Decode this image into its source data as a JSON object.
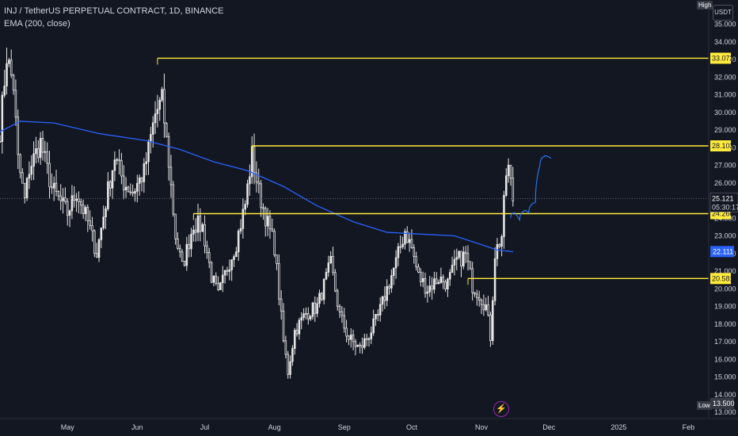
{
  "header": {
    "symbol_line": "INJ / TetherUS PERPETUAL CONTRACT, 1D, BINANCE",
    "indicator_line": "EMA (200, close)"
  },
  "price_axis": {
    "currency_label": "USDT",
    "high_label": "High",
    "low_label": "Low"
  },
  "chart_data": {
    "type": "candlestick",
    "ylim": [
      13.0,
      35.7
    ],
    "y_ticks": [
      "13.000",
      "14.000",
      "15.000",
      "16.000",
      "17.000",
      "18.000",
      "19.000",
      "20.000",
      "21.000",
      "22.000",
      "23.000",
      "24.000",
      "25.000",
      "26.000",
      "27.000",
      "28.000",
      "29.000",
      "30.000",
      "31.000",
      "32.000",
      "33.000",
      "34.000",
      "35.000"
    ],
    "x_labels": [
      {
        "label": "May",
        "date": "2024-05-01"
      },
      {
        "label": "Jun",
        "date": "2024-06-01"
      },
      {
        "label": "Jul",
        "date": "2024-07-01"
      },
      {
        "label": "Aug",
        "date": "2024-08-01"
      },
      {
        "label": "Sep",
        "date": "2024-09-01"
      },
      {
        "label": "Oct",
        "date": "2024-10-01"
      },
      {
        "label": "Nov",
        "date": "2024-11-01"
      },
      {
        "label": "Dec",
        "date": "2024-12-01"
      },
      {
        "label": "2025",
        "date": "2025-01-01"
      },
      {
        "label": "Feb",
        "date": "2025-02-01"
      }
    ],
    "x_range": [
      "2024-04-01",
      "2025-02-10"
    ],
    "price_path": [
      [
        "2024-04-01",
        29.0
      ],
      [
        "2024-04-04",
        33.2
      ],
      [
        "2024-04-07",
        31.5
      ],
      [
        "2024-04-09",
        27.3
      ],
      [
        "2024-04-12",
        25.0
      ],
      [
        "2024-04-14",
        26.8
      ],
      [
        "2024-04-19",
        28.3
      ],
      [
        "2024-04-24",
        25.7
      ],
      [
        "2024-05-01",
        24.3
      ],
      [
        "2024-05-05",
        25.5
      ],
      [
        "2024-05-10",
        23.8
      ],
      [
        "2024-05-14",
        22.0
      ],
      [
        "2024-05-19",
        25.6
      ],
      [
        "2024-05-22",
        27.5
      ],
      [
        "2024-05-26",
        26.0
      ],
      [
        "2024-05-30",
        25.5
      ],
      [
        "2024-06-04",
        26.6
      ],
      [
        "2024-06-09",
        29.9
      ],
      [
        "2024-06-12",
        30.7
      ],
      [
        "2024-06-15",
        27.2
      ],
      [
        "2024-06-18",
        23.0
      ],
      [
        "2024-06-21",
        21.2
      ],
      [
        "2024-06-26",
        23.7
      ],
      [
        "2024-06-30",
        23.5
      ],
      [
        "2024-07-04",
        20.7
      ],
      [
        "2024-07-07",
        19.6
      ],
      [
        "2024-07-11",
        21.2
      ],
      [
        "2024-07-15",
        22.6
      ],
      [
        "2024-07-19",
        24.8
      ],
      [
        "2024-07-22",
        27.6
      ],
      [
        "2024-07-25",
        25.5
      ],
      [
        "2024-07-28",
        24.1
      ],
      [
        "2024-08-01",
        22.4
      ],
      [
        "2024-08-05",
        17.0
      ],
      [
        "2024-08-07",
        15.3
      ],
      [
        "2024-08-10",
        17.6
      ],
      [
        "2024-08-15",
        18.6
      ],
      [
        "2024-08-20",
        19.0
      ],
      [
        "2024-08-26",
        21.4
      ],
      [
        "2024-08-30",
        18.5
      ],
      [
        "2024-09-03",
        17.2
      ],
      [
        "2024-09-08",
        16.6
      ],
      [
        "2024-09-12",
        17.4
      ],
      [
        "2024-09-16",
        18.4
      ],
      [
        "2024-09-20",
        20.0
      ],
      [
        "2024-09-24",
        21.5
      ],
      [
        "2024-09-28",
        23.3
      ],
      [
        "2024-10-01",
        22.3
      ],
      [
        "2024-10-04",
        20.7
      ],
      [
        "2024-10-08",
        20.0
      ],
      [
        "2024-10-13",
        20.6
      ],
      [
        "2024-10-17",
        20.3
      ],
      [
        "2024-10-21",
        21.6
      ],
      [
        "2024-10-25",
        21.9
      ],
      [
        "2024-10-28",
        20.2
      ],
      [
        "2024-10-31",
        19.7
      ],
      [
        "2024-11-03",
        19.0
      ],
      [
        "2024-11-05",
        17.3
      ],
      [
        "2024-11-07",
        22.0
      ],
      [
        "2024-11-10",
        23.0
      ],
      [
        "2024-11-12",
        26.5
      ],
      [
        "2024-11-13",
        26.8
      ],
      [
        "2024-11-15",
        25.1
      ]
    ],
    "ema_200": [
      [
        "2024-04-01",
        28.9
      ],
      [
        "2024-04-10",
        29.5
      ],
      [
        "2024-04-25",
        29.4
      ],
      [
        "2024-05-15",
        28.8
      ],
      [
        "2024-06-05",
        28.4
      ],
      [
        "2024-06-20",
        27.9
      ],
      [
        "2024-07-05",
        27.2
      ],
      [
        "2024-07-20",
        26.7
      ],
      [
        "2024-08-05",
        25.8
      ],
      [
        "2024-08-20",
        24.7
      ],
      [
        "2024-09-05",
        23.8
      ],
      [
        "2024-09-20",
        23.2
      ],
      [
        "2024-10-05",
        23.1
      ],
      [
        "2024-10-20",
        23.0
      ],
      [
        "2024-11-01",
        22.5
      ],
      [
        "2024-11-08",
        22.2
      ],
      [
        "2024-11-15",
        22.1
      ]
    ],
    "levels": [
      {
        "price": 33.072,
        "label": "33.072",
        "start": "2024-06-10"
      },
      {
        "price": 28.103,
        "label": "28.103",
        "start": "2024-07-22"
      },
      {
        "price": 24.26,
        "label": "24.260",
        "start": "2024-06-26"
      },
      {
        "price": 20.581,
        "label": "20.581",
        "start": "2024-10-26"
      }
    ],
    "last_price": {
      "label": "25.121",
      "countdown": "05:30:17",
      "price": 25.121
    },
    "ema_value": {
      "label": "22.111",
      "price": 22.111
    },
    "low_value": {
      "label": "13.500",
      "price": 13.5
    },
    "projection": [
      [
        "2024-11-14",
        24.0
      ],
      [
        "2024-11-16",
        24.3
      ],
      [
        "2024-11-18",
        23.9
      ],
      [
        "2024-11-20",
        24.4
      ],
      [
        "2024-11-22",
        24.3
      ],
      [
        "2024-11-25",
        24.9
      ],
      [
        "2024-11-27",
        27.0
      ],
      [
        "2024-11-29",
        27.5
      ],
      [
        "2024-12-02",
        27.4
      ]
    ],
    "colors": {
      "background": "#131722",
      "candle": "#e6e6e6",
      "ema": "#2962ff",
      "level": "#ffeb3b",
      "projection": "#2979ff",
      "axis_text": "#d1d4dc"
    }
  }
}
